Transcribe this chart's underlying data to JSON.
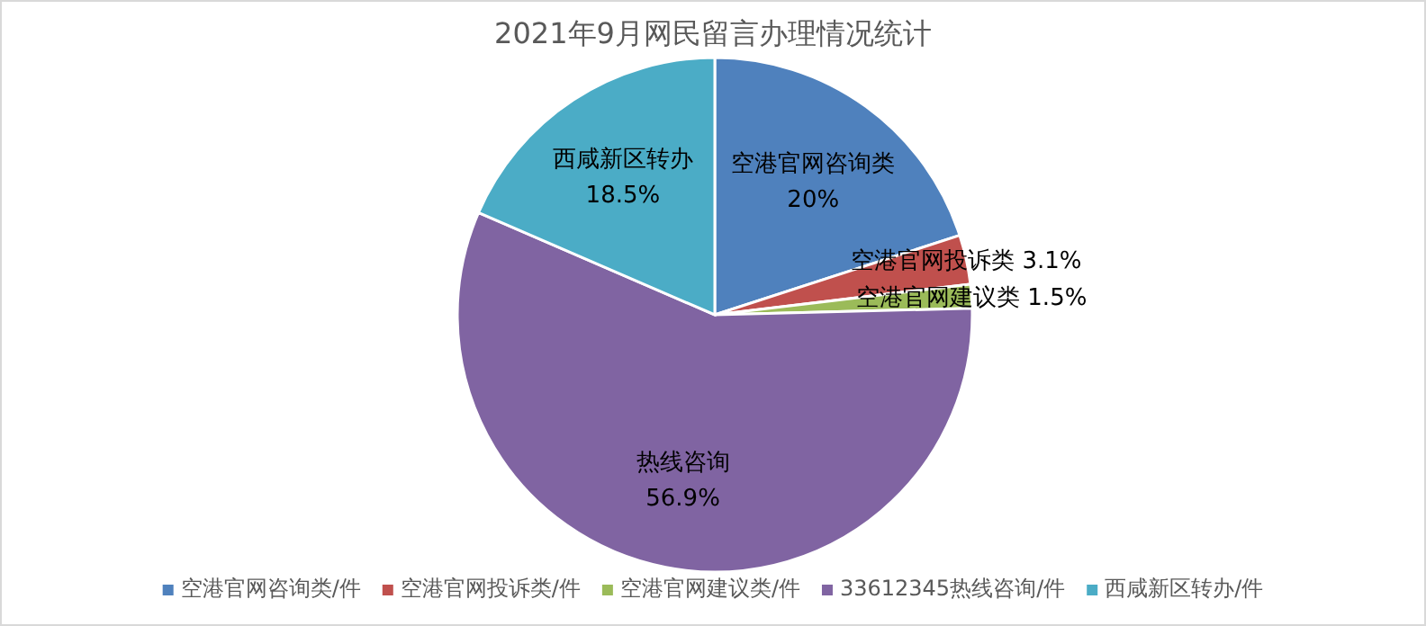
{
  "chart_data": {
    "type": "pie",
    "title": "2021年9月网民留言办理情况统计",
    "categories": [
      "空港官网咨询类/件",
      "空港官网投诉类/件",
      "空港官网建议类/件",
      "33612345热线咨询/件",
      "西咸新区转办/件"
    ],
    "values": [
      20,
      3.1,
      1.5,
      56.9,
      18.5
    ],
    "colors": [
      "#4f81bd",
      "#c0504d",
      "#9bbb59",
      "#8064a2",
      "#4bacc6"
    ],
    "value_labels": [
      "空港官网咨询类\n20%",
      "空港官网投诉类 3.1%",
      "空港官网建议类 1.5%",
      "热线咨询\n56.9%",
      "西咸新区转办\n18.5%"
    ],
    "legend": "bottom"
  }
}
